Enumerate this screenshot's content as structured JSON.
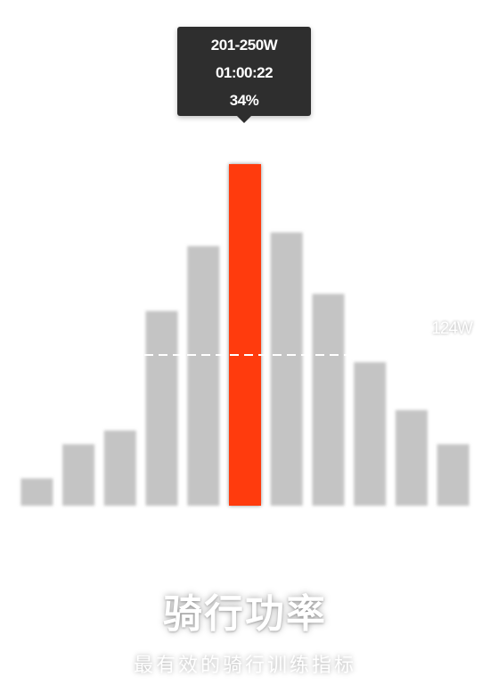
{
  "chart_data": {
    "type": "bar",
    "values": [
      8,
      18,
      22,
      57,
      76,
      100,
      80,
      62,
      42,
      28,
      18
    ],
    "highlight_index": 5,
    "average_line_label": "124W",
    "colors": {
      "bar": "#c4c4c4",
      "highlight": "#ff3b08",
      "avg_line": "#ffffff"
    }
  },
  "tooltip": {
    "range": "201-250W",
    "time": "01:00:22",
    "percent": "34%"
  },
  "headline": "骑行功率",
  "subline": "最有效的骑行训练指标"
}
